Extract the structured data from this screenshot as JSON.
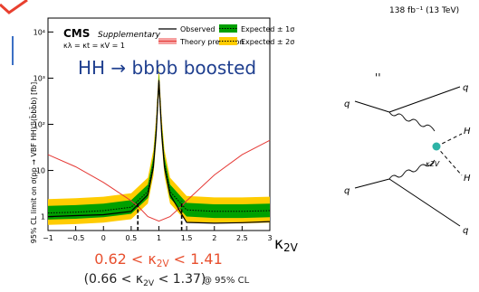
{
  "header": {
    "lumi": "138 fb⁻¹ (13 TeV)",
    "experiment": "CMS",
    "label": "Supplementary",
    "couplings": "κλ = κt = κV = 1",
    "overlay_title": "HH → bbbb boosted"
  },
  "chart_data": {
    "type": "line",
    "ylabel": "95% CL limit on σ(pp → VBF HH)ℬ(b̄bb̄b) [fb]",
    "xlabel": "κ2V",
    "xlim": [
      -1,
      3
    ],
    "ylim": [
      0.5,
      20000
    ],
    "yscale": "log",
    "x_ticks": [
      "−1",
      "−0.5",
      "0",
      "0.5",
      "1",
      "1.5",
      "2",
      "2.5",
      "3"
    ],
    "y_ticks": [
      "1",
      "10",
      "10²",
      "10³",
      "10⁴"
    ],
    "legend": [
      {
        "name": "Observed",
        "style": "black-line"
      },
      {
        "name": "Expected ± 1σ",
        "style": "green-band"
      },
      {
        "name": "Theory prediction",
        "style": "red-line"
      },
      {
        "name": "Expected ± 2σ",
        "style": "yellow-band"
      }
    ],
    "series": [
      {
        "name": "Observed",
        "x": [
          -1,
          -0.5,
          0,
          0.5,
          0.8,
          0.9,
          0.95,
          1.0,
          1.05,
          1.1,
          1.2,
          1.5,
          2,
          2.5,
          3
        ],
        "y": [
          1.0,
          1.05,
          1.1,
          1.3,
          3.0,
          12,
          60,
          900,
          60,
          12,
          3.0,
          0.75,
          0.72,
          0.74,
          0.78
        ]
      },
      {
        "name": "Expected",
        "x": [
          -1,
          -0.5,
          0,
          0.5,
          0.8,
          0.9,
          0.95,
          1.0,
          1.05,
          1.1,
          1.2,
          1.5,
          2,
          2.5,
          3
        ],
        "y": [
          1.2,
          1.25,
          1.35,
          1.6,
          3.5,
          14,
          70,
          900,
          70,
          14,
          3.5,
          1.4,
          1.3,
          1.3,
          1.35
        ]
      },
      {
        "name": "Theory prediction",
        "x": [
          -1,
          -0.5,
          0,
          0.5,
          0.62,
          0.8,
          1.0,
          1.2,
          1.41,
          1.5,
          2,
          2.5,
          3
        ],
        "y": [
          22,
          12,
          5.5,
          2.2,
          1.7,
          1.0,
          0.8,
          1.0,
          1.7,
          2.2,
          8,
          22,
          45
        ]
      }
    ],
    "band_factors": {
      "one_sigma": [
        0.72,
        1.42
      ],
      "two_sigma": [
        0.55,
        2.0
      ]
    },
    "exclusion_lines_x": [
      0.62,
      1.41
    ]
  },
  "result": {
    "observed": "0.62 < κ2V < 1.41",
    "expected": "(0.66 < κ2V < 1.37)",
    "cl": "@ 95% CL"
  },
  "diagram": {
    "q_labels": [
      "q",
      "q",
      "q",
      "q"
    ],
    "h_labels": [
      "H",
      "H"
    ],
    "vertex_label": "κ2V"
  }
}
